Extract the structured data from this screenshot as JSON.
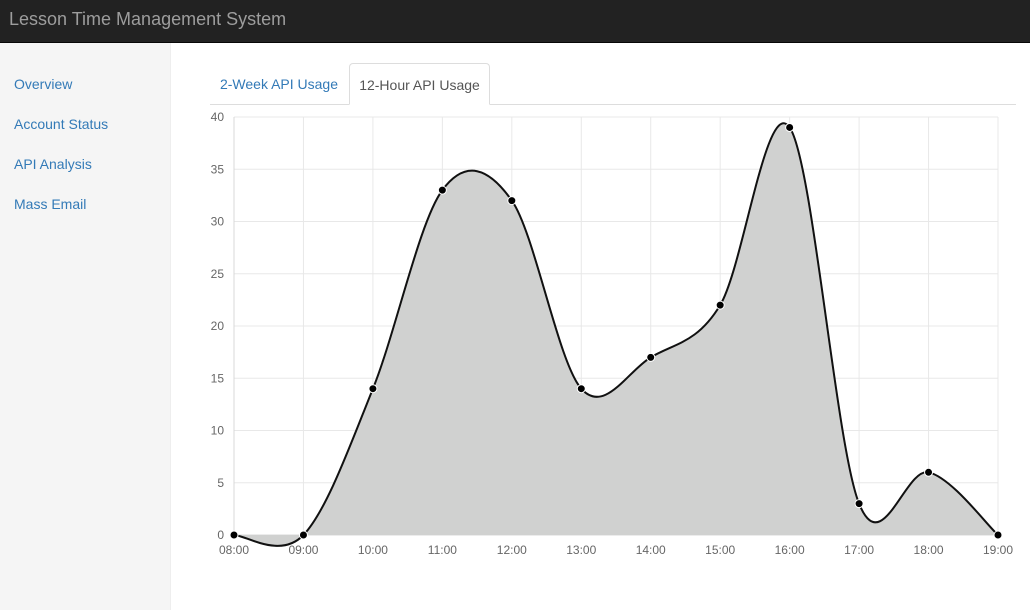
{
  "app": {
    "title": "Lesson Time Management System"
  },
  "sidebar": {
    "items": [
      {
        "label": "Overview"
      },
      {
        "label": "Account Status"
      },
      {
        "label": "API Analysis"
      },
      {
        "label": "Mass Email"
      }
    ]
  },
  "tabs": [
    {
      "label": "2-Week API Usage",
      "active": false
    },
    {
      "label": "12-Hour API Usage",
      "active": true
    }
  ],
  "colors": {
    "navbar": "#222222",
    "link": "#337ab7",
    "line": "#111111",
    "fill": "#d0d1d0"
  },
  "chart_data": {
    "type": "area",
    "categories": [
      "08:00",
      "09:00",
      "10:00",
      "11:00",
      "12:00",
      "13:00",
      "14:00",
      "15:00",
      "16:00",
      "17:00",
      "18:00",
      "19:00"
    ],
    "values": [
      0,
      0,
      14,
      33,
      32,
      14,
      17,
      22,
      39,
      3,
      6,
      0
    ],
    "ylim": [
      0,
      40
    ],
    "yticks": [
      0,
      5,
      10,
      15,
      20,
      25,
      30,
      35,
      40
    ],
    "grid": true,
    "smooth": true
  }
}
